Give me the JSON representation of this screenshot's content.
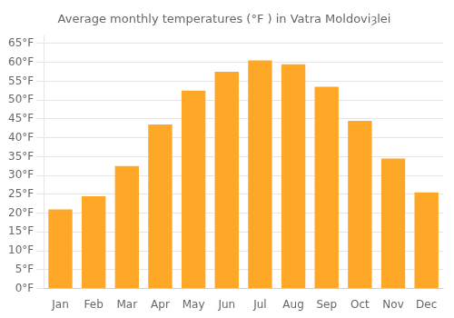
{
  "chart_data": {
    "type": "bar",
    "title": "Average monthly temperatures (°F ) in Vatra Moldoviȝlei",
    "categories": [
      "Jan",
      "Feb",
      "Mar",
      "Apr",
      "May",
      "Jun",
      "Jul",
      "Aug",
      "Sep",
      "Oct",
      "Nov",
      "Dec"
    ],
    "values": [
      21,
      24.5,
      32.5,
      43.5,
      52.5,
      57.5,
      60.5,
      59.5,
      53.5,
      44.5,
      34.5,
      25.5
    ],
    "color": "#FFA726",
    "ylim": [
      0,
      67
    ],
    "yticks": [
      {
        "value": 0,
        "label": "0°F"
      },
      {
        "value": 5,
        "label": "5°F"
      },
      {
        "value": 10,
        "label": "10°F"
      },
      {
        "value": 15,
        "label": "15°F"
      },
      {
        "value": 20,
        "label": "20°F"
      },
      {
        "value": 25,
        "label": "25°F"
      },
      {
        "value": 30,
        "label": "30°F"
      },
      {
        "value": 35,
        "label": "35°F"
      },
      {
        "value": 40,
        "label": "40°F"
      },
      {
        "value": 45,
        "label": "45°F"
      },
      {
        "value": 50,
        "label": "50°F"
      },
      {
        "value": 55,
        "label": "55°F"
      },
      {
        "value": 60,
        "label": "60°F"
      },
      {
        "value": 65,
        "label": "65°F"
      }
    ],
    "grid": true
  }
}
